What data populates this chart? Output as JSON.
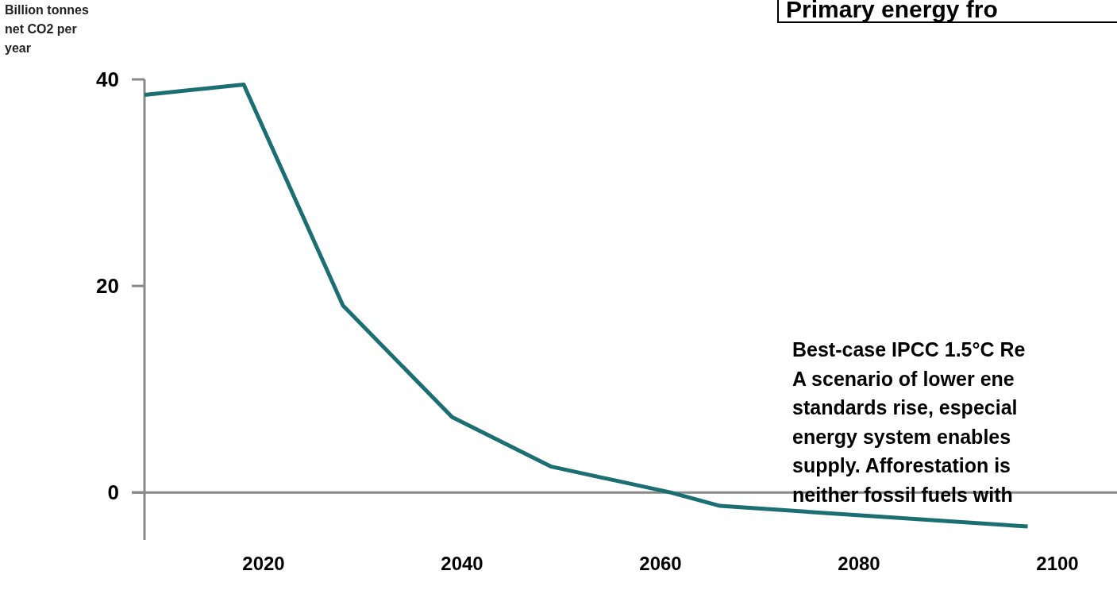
{
  "chart_data": {
    "type": "line",
    "title": "Primary energy fro",
    "ylabel": "Billion tonnes net CO2 per year",
    "x": [
      2008,
      2018,
      2028,
      2039,
      2049,
      2061,
      2066,
      2097
    ],
    "series": [
      {
        "color": "#1b6f73",
        "values": [
          38.5,
          39.5,
          18.1,
          7.3,
          2.5,
          0,
          -1.3,
          -3.3
        ]
      }
    ],
    "xlim": [
      2008,
      2106
    ],
    "ylim": [
      -4.6,
      40
    ],
    "xticks": [
      2020,
      2040,
      2060,
      2080,
      2100
    ],
    "yticks": [
      0,
      20,
      40
    ],
    "marker": "none",
    "line_style": "solid",
    "annotations": [
      "Best-case IPCC 1.5°C Re",
      "A scenario of lower ene",
      "standards rise, especial",
      "energy system enables",
      "supply. Afforestation is",
      "neither fossil fuels with"
    ]
  }
}
